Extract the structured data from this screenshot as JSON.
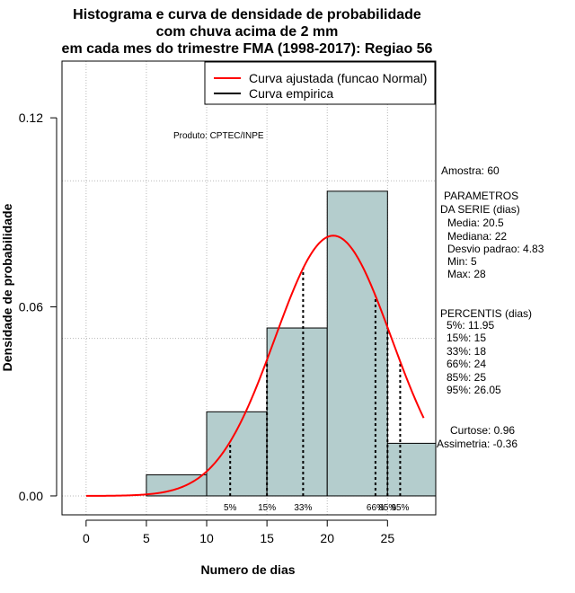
{
  "chart_data": {
    "type": "bar",
    "title_lines": [
      "Histograma e curva de densidade de probabilidade",
      "com chuva acima de 2 mm",
      "em cada mes do trimestre FMA (1998-2017): Regiao 56"
    ],
    "xlabel": "Numero de dias",
    "ylabel": "Densidade de probabilidade",
    "xlim": [
      -2,
      29
    ],
    "ylim": [
      -0.006,
      0.138
    ],
    "xticks": [
      0,
      5,
      10,
      15,
      20,
      25
    ],
    "xtick_labels": [
      "0",
      "5",
      "10",
      "15",
      "20",
      "25"
    ],
    "yticks": [
      0.0,
      0.06,
      0.12
    ],
    "ytick_labels": [
      "0.00",
      "0.06",
      "0.12"
    ],
    "grid_x": [
      0,
      5,
      10,
      15,
      20,
      25
    ],
    "grid_y": [
      0.0,
      0.05,
      0.1
    ],
    "bins": [
      {
        "start": 5,
        "end": 10,
        "density": 0.0067
      },
      {
        "start": 10,
        "end": 15,
        "density": 0.0267
      },
      {
        "start": 15,
        "end": 20,
        "density": 0.0533
      },
      {
        "start": 20,
        "end": 25,
        "density": 0.0967
      },
      {
        "start": 25,
        "end": 29,
        "density": 0.0167
      }
    ],
    "fitted_curve": {
      "distribution": "normal",
      "mean": 20.5,
      "sd": 4.83,
      "x_range": [
        0,
        28
      ],
      "color": "#ff0000"
    },
    "percentile_markers": [
      {
        "x": 11.95,
        "label": "5%"
      },
      {
        "x": 15,
        "label": "15%"
      },
      {
        "x": 18,
        "label": "33%"
      },
      {
        "x": 24,
        "label": "66%"
      },
      {
        "x": 25,
        "label": "85%"
      },
      {
        "x": 26.05,
        "label": "95%"
      }
    ],
    "legend": [
      {
        "label": "Curva ajustada (funcao Normal)",
        "color": "#ff0000"
      },
      {
        "label": "Curva empirica",
        "color": "#000000"
      }
    ],
    "legend_position": "top-right",
    "product_note": "Produto: CPTEC/INPE",
    "bar_color": "#b4cdcd"
  },
  "stats_panel": {
    "sample": "Amostra: 60",
    "params_title": [
      "PARAMETROS",
      "DA SERIE (dias)"
    ],
    "params": [
      "Media: 20.5",
      "Mediana: 22",
      "Desvio padrao: 4.83",
      "Min: 5",
      "Max: 28"
    ],
    "percentis_title": "PERCENTIS (dias)",
    "percentis": [
      "5%: 11.95",
      "15%: 15",
      "33%: 18",
      "66%: 24",
      "85%: 25",
      "95%: 26.05"
    ],
    "curtose": "Curtose: 0.96",
    "assimetria": "Assimetria: -0.36"
  }
}
